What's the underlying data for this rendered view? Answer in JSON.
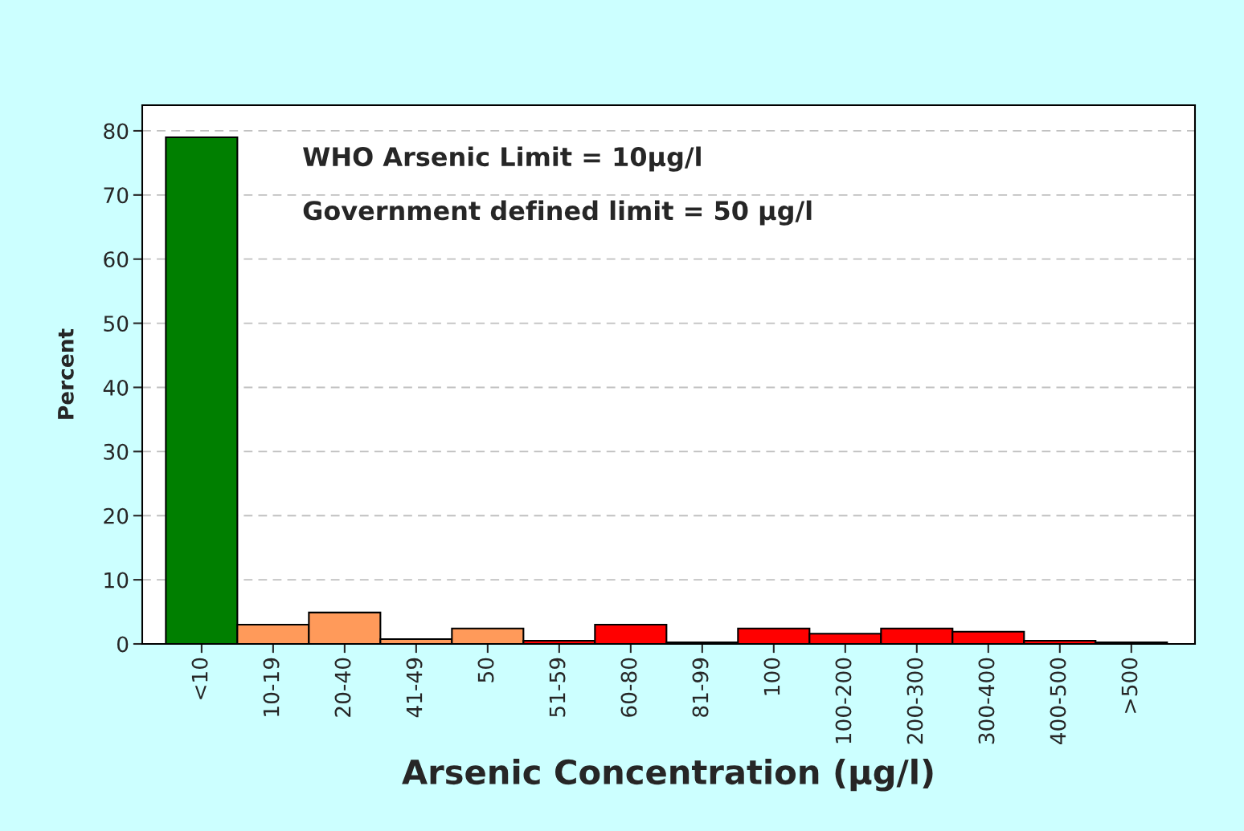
{
  "chart_data": {
    "type": "bar",
    "xlabel": "Arsenic Concentration (µg/l)",
    "ylabel": "Percent",
    "categories": [
      "<10",
      "10-19",
      "20-40",
      "41-49",
      "50",
      "51-59",
      "60-80",
      "81-99",
      "100",
      "100-200",
      "200-300",
      "300-400",
      "400-500",
      ">500"
    ],
    "values": [
      79,
      3.0,
      4.9,
      0.75,
      2.4,
      0.5,
      3.0,
      0.25,
      2.4,
      1.6,
      2.4,
      1.9,
      0.5,
      0.25
    ],
    "colors": [
      "#007f00",
      "#ff9a5a",
      "#ff9a5a",
      "#ff9a5a",
      "#ff9a5a",
      "#ff0000",
      "#ff0000",
      "#ff0000",
      "#ff0000",
      "#ff0000",
      "#ff0000",
      "#ff0000",
      "#ff0000",
      "#ff0000"
    ],
    "ylim": [
      0,
      84
    ],
    "yticks": [
      0,
      10,
      20,
      30,
      40,
      50,
      60,
      70,
      80
    ],
    "grid": "y",
    "annotations": [
      "WHO Arsenic Limit = 10µg/l",
      "Government defined limit = 50 µg/l"
    ]
  }
}
